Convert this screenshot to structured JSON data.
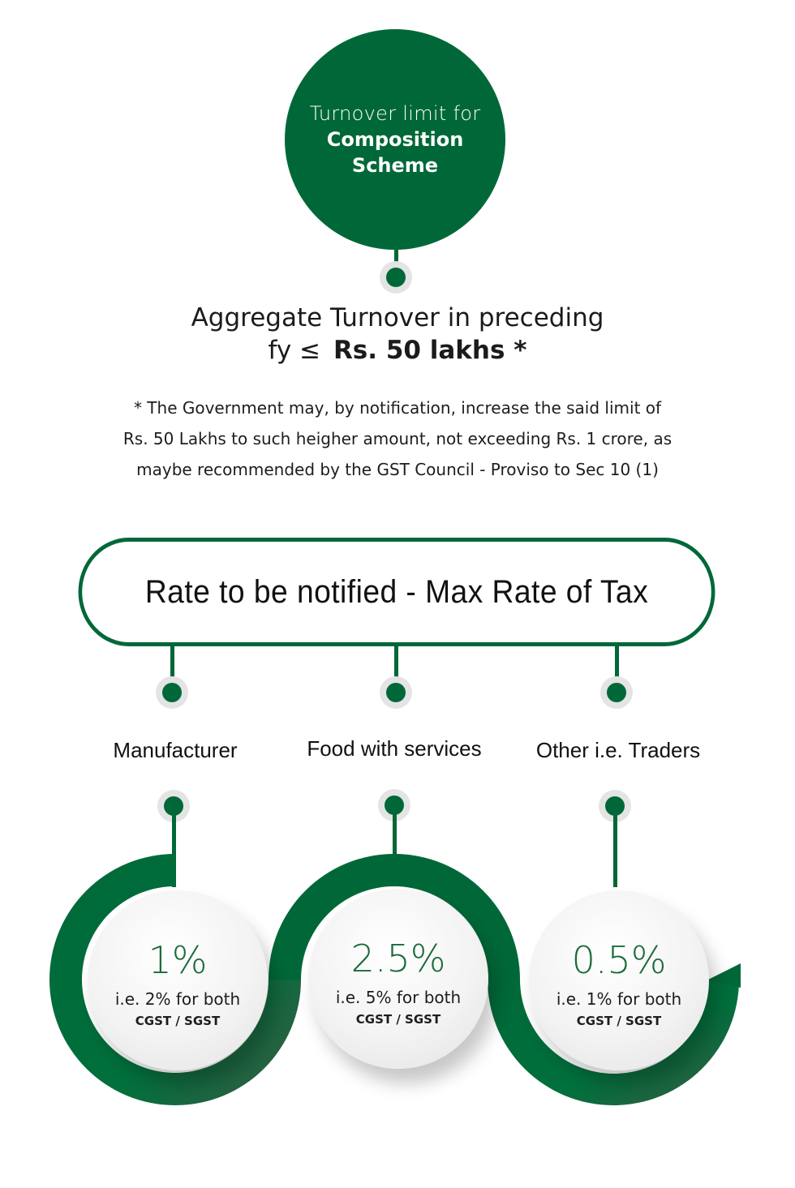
{
  "colors": {
    "primary": "#006838",
    "accent_text": "#1a6b3a",
    "halo": "#e4e4e4"
  },
  "top_circle": {
    "line1": "Turnover limit for",
    "line2": "Composition Scheme"
  },
  "aggregate": {
    "line1": "Aggregate Turnover in preceding",
    "line2_prefix": "fy ≤",
    "line2_bold": "Rs. 50 lakhs *"
  },
  "note": {
    "line1": "* The Government may, by notification, increase the said limit of",
    "line2": "Rs. 50 Lakhs to such heigher amount, not exceeding Rs. 1 crore, as",
    "line3": "maybe recommended by the GST Council - Proviso to Sec 10 (1)"
  },
  "rate_banner": "Rate to be notified - Max Rate of Tax",
  "categories": [
    {
      "label": "Manufacturer",
      "rate": "1%",
      "detail": "i.e. 2% for both",
      "taxes": "CGST / SGST"
    },
    {
      "label": "Food with services",
      "rate": "2.5%",
      "detail": "i.e. 5% for both",
      "taxes": "CGST / SGST"
    },
    {
      "label": "Other i.e. Traders",
      "rate": "0.5%",
      "detail": "i.e. 1% for both",
      "taxes": "CGST / SGST"
    }
  ]
}
